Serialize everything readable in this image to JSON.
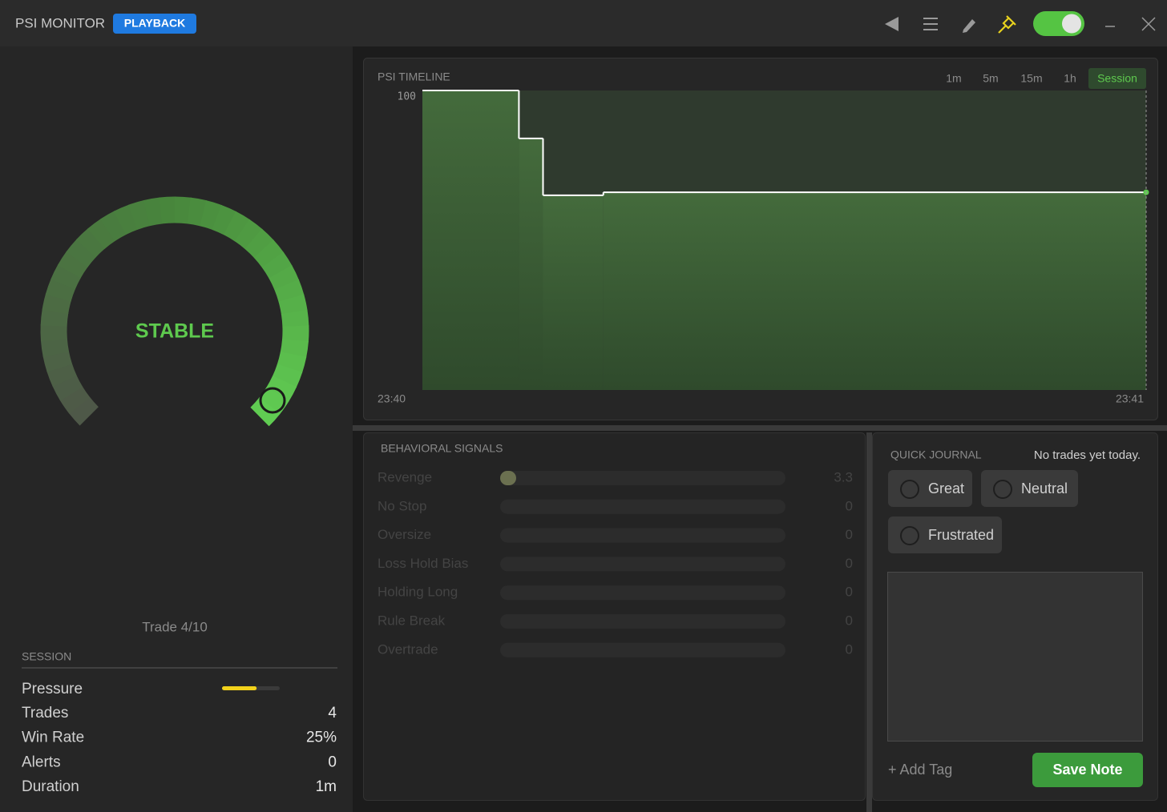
{
  "header": {
    "title": "PSI MONITOR",
    "badge": "PLAYBACK"
  },
  "gauge": {
    "status": "STABLE",
    "trade": "Trade 4/10"
  },
  "session": {
    "title": "SESSION",
    "pressure_label": "Pressure",
    "pressure": 0.6,
    "rows": [
      {
        "label": "Trades",
        "value": "4"
      },
      {
        "label": "Win Rate",
        "value": "25%"
      },
      {
        "label": "Alerts",
        "value": "0"
      },
      {
        "label": "Duration",
        "value": "1m"
      }
    ]
  },
  "timeline": {
    "title": "PSI TIMELINE",
    "ranges": [
      "1m",
      "5m",
      "15m",
      "1h",
      "Session"
    ],
    "active_range": 4,
    "x": [
      0,
      8,
      10,
      15,
      60
    ],
    "values": [
      100,
      84,
      65,
      66,
      66
    ],
    "step": "post",
    "xlim": [
      0,
      60
    ],
    "xticks": [
      {
        "value": 0,
        "label": "23:40"
      },
      {
        "value": 60,
        "label": "23:41"
      }
    ],
    "ylim": [
      0,
      100
    ],
    "yticks": [
      100
    ],
    "color": "#ffffff"
  },
  "signals": {
    "title": "BEHAVIORAL SIGNALS",
    "scale_max": 100,
    "rows": [
      {
        "label": "Revenge",
        "value": 3.3
      },
      {
        "label": "No Stop",
        "value": 0
      },
      {
        "label": "Oversize",
        "value": 0
      },
      {
        "label": "Loss Hold Bias",
        "value": 0
      },
      {
        "label": "Holding Long",
        "value": 0
      },
      {
        "label": "Rule Break",
        "value": 0
      },
      {
        "label": "Overtrade",
        "value": 0
      }
    ]
  },
  "journal": {
    "title": "QUICK JOURNAL",
    "note": "No trades yet today.",
    "moods": [
      "Great",
      "Neutral",
      "Frustrated"
    ],
    "add_tag": "+ Add Tag",
    "save": "Save Note"
  }
}
